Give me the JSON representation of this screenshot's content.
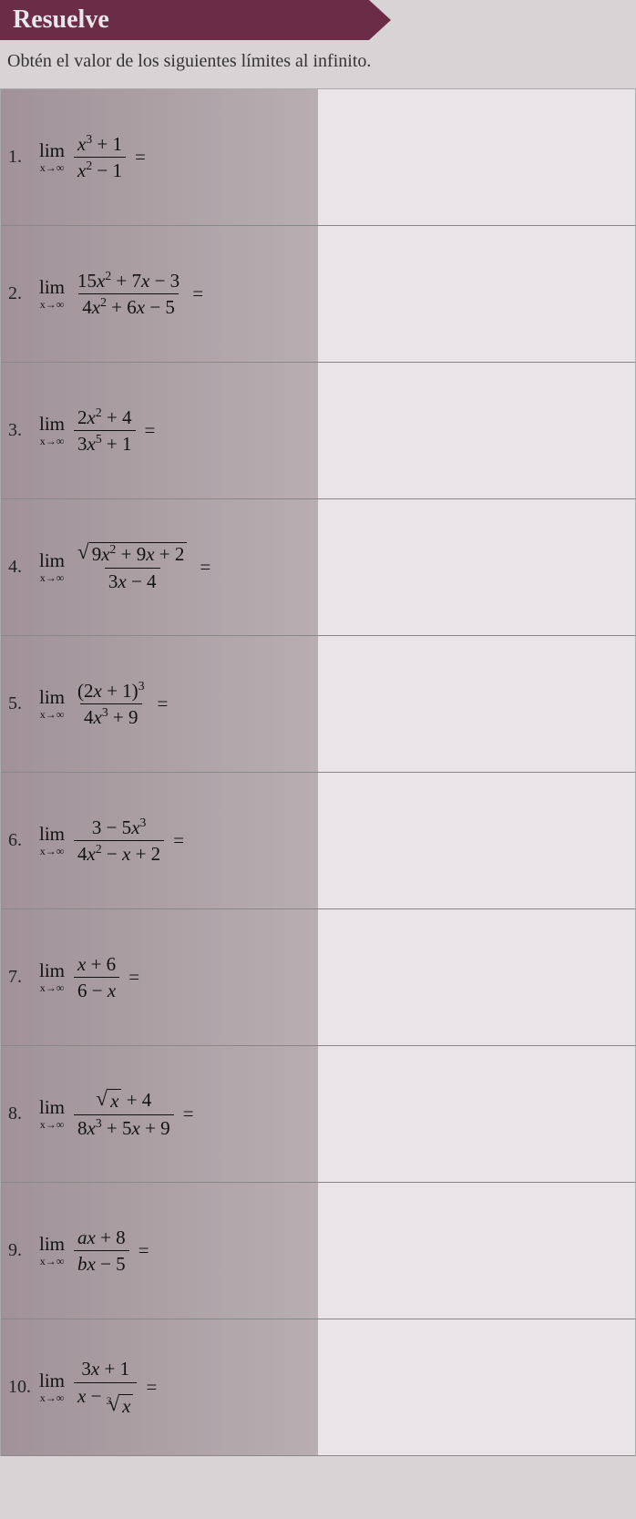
{
  "header": {
    "title": "Resuelve"
  },
  "instruction": "Obtén el valor de los siguientes límites al infinito.",
  "lim_label": "lim",
  "lim_approach": "x→∞",
  "equals": "=",
  "problems": [
    {
      "n": "1.",
      "num_html": "<i>x</i><sup>3</sup> + 1",
      "den_html": "<i>x</i><sup>2</sup> − 1"
    },
    {
      "n": "2.",
      "num_html": "15<i>x</i><sup>2</sup> + 7<i>x</i> − 3",
      "den_html": "4<i>x</i><sup>2</sup> + 6<i>x</i> − 5"
    },
    {
      "n": "3.",
      "num_html": "2<i>x</i><sup>2</sup> + 4",
      "den_html": "3<i>x</i><sup>5</sup> + 1"
    },
    {
      "n": "4.",
      "num_html": "<span class='sqrt'><span class='radical'>√</span><span class='radicand'>9<i>x</i><sup>2</sup> + 9<i>x</i> + 2</span></span>",
      "den_html": "3<i>x</i> − 4"
    },
    {
      "n": "5.",
      "num_html": "(2<i>x</i> + 1)<sup>3</sup>",
      "den_html": "4<i>x</i><sup>3</sup> + 9"
    },
    {
      "n": "6.",
      "num_html": "3 − 5<i>x</i><sup>3</sup>",
      "den_html": "4<i>x</i><sup>2</sup> − <i>x</i> + 2"
    },
    {
      "n": "7.",
      "num_html": "<i>x</i> + 6",
      "den_html": "6 − <i>x</i>"
    },
    {
      "n": "8.",
      "num_html": "<span class='sqrt'><span class='radical'>√</span><span class='radicand'><i>x</i></span></span> + 4",
      "den_html": "8<i>x</i><sup>3</sup> + 5<i>x</i> + 9"
    },
    {
      "n": "9.",
      "num_html": "<i>a</i><i>x</i> + 8",
      "den_html": "<i>b</i><i>x</i> − 5"
    },
    {
      "n": "10.",
      "num_html": "3<i>x</i> + 1",
      "den_html": "<i>x</i> − <span class='sqrt'><span class='rootidx'>3</span><span class='radical'>√</span><span class='radicand'><i>x</i></span></span>"
    }
  ]
}
